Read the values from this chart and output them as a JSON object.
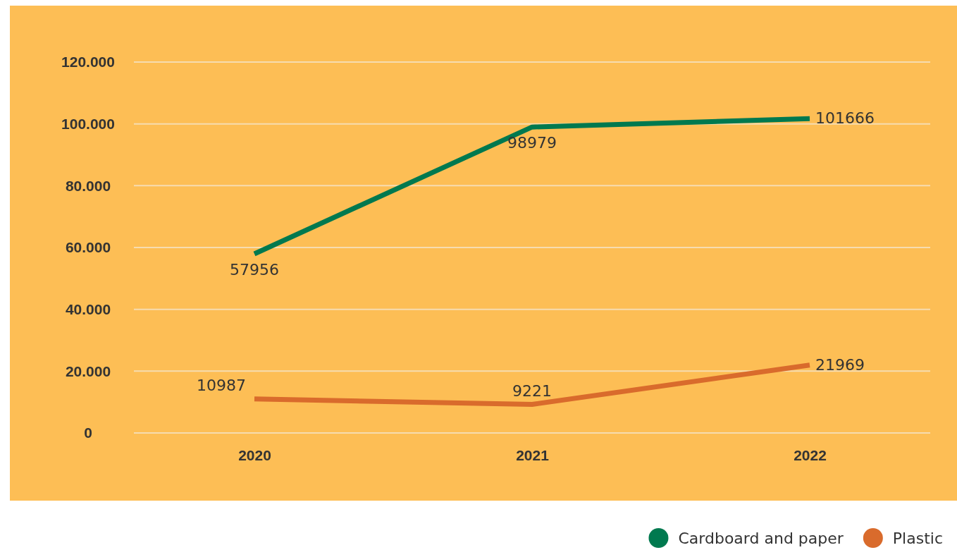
{
  "chart_data": {
    "type": "line",
    "categories": [
      "2020",
      "2021",
      "2022"
    ],
    "series": [
      {
        "name": "Cardboard and paper",
        "color": "#00794f",
        "values": [
          57956,
          98979,
          101666
        ]
      },
      {
        "name": "Plastic",
        "color": "#d96b2c",
        "values": [
          10987,
          9221,
          21969
        ]
      }
    ],
    "ylim": [
      0,
      120000
    ],
    "yticks": [
      {
        "value": 0,
        "label": "0"
      },
      {
        "value": 20000,
        "label": "20.000"
      },
      {
        "value": 40000,
        "label": "40.000"
      },
      {
        "value": 60000,
        "label": "60.000"
      },
      {
        "value": 80000,
        "label": "80.000"
      },
      {
        "value": 100000,
        "label": "100.000"
      },
      {
        "value": 120000,
        "label": "120.000"
      }
    ],
    "grid": "y",
    "legend": "bottom right",
    "data_labels": true,
    "marker": "none",
    "line_style": "solid"
  }
}
